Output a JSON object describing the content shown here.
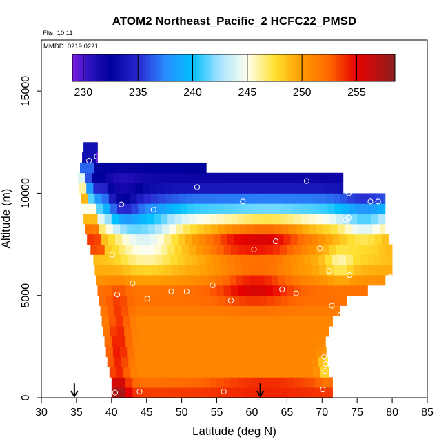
{
  "chart_data": {
    "type": "heatmap",
    "title": "ATOM2 Northeast_Pacific_2 HCFC22_PMSD",
    "flights_label": "Flts: 10,11",
    "dates_label": "MMDD: 0219,0221",
    "xlabel": "Latitude (deg N)",
    "ylabel": "Altitude (m)",
    "xlim": [
      30,
      85
    ],
    "ylim": [
      0,
      17500
    ],
    "x_ticks": [
      30,
      35,
      40,
      45,
      50,
      55,
      60,
      65,
      70,
      75,
      80,
      85
    ],
    "y_ticks": [
      0,
      5000,
      10000,
      15000
    ],
    "colorbar": {
      "min": 229,
      "max": 258.5,
      "tick_values": [
        230,
        235,
        240,
        245,
        250,
        255
      ],
      "stops": [
        {
          "value": 229.0,
          "color": "#7b1ee0"
        },
        {
          "value": 230.5,
          "color": "#2f12c0"
        },
        {
          "value": 232.5,
          "color": "#00009a"
        },
        {
          "value": 235.0,
          "color": "#2828d0"
        },
        {
          "value": 237.5,
          "color": "#2a8cff"
        },
        {
          "value": 240.0,
          "color": "#00c0ff"
        },
        {
          "value": 242.5,
          "color": "#a8e4ff"
        },
        {
          "value": 245.0,
          "color": "#ffffee"
        },
        {
          "value": 247.5,
          "color": "#ffe030"
        },
        {
          "value": 250.0,
          "color": "#ff9a00"
        },
        {
          "value": 252.5,
          "color": "#ff6600"
        },
        {
          "value": 255.0,
          "color": "#e80000"
        },
        {
          "value": 258.5,
          "color": "#8e2020"
        }
      ]
    },
    "field": {
      "y_levels": [
        0,
        500,
        1000,
        1500,
        2000,
        2500,
        3000,
        3500,
        4000,
        4500,
        5000,
        5500,
        6000,
        6500,
        7000,
        7500,
        8000,
        8500,
        9000,
        9500,
        10000,
        10500,
        11000,
        11500,
        12000
      ],
      "envelope": [
        [
          40.0,
          71.5
        ],
        [
          40.0,
          71.5
        ],
        [
          39.7,
          71.0
        ],
        [
          39.4,
          70.8
        ],
        [
          39.2,
          70.6
        ],
        [
          39.0,
          70.5
        ],
        [
          38.8,
          71.0
        ],
        [
          38.6,
          71.5
        ],
        [
          38.4,
          72.5
        ],
        [
          38.2,
          73.5
        ],
        [
          38.0,
          76.5
        ],
        [
          37.8,
          79.0
        ],
        [
          37.6,
          80.0
        ],
        [
          37.4,
          80.0
        ],
        [
          37.0,
          80.0
        ],
        [
          36.5,
          79.5
        ],
        [
          36.2,
          79.0
        ],
        [
          36.0,
          79.0
        ],
        [
          35.8,
          79.0
        ],
        [
          35.6,
          79.0
        ],
        [
          35.4,
          73.0
        ],
        [
          35.2,
          73.0
        ],
        [
          35.5,
          53.5
        ],
        [
          35.8,
          38.0
        ],
        [
          36.0,
          38.0
        ]
      ],
      "base_values": [
        253.5,
        252.0,
        251.0,
        251.0,
        251.0,
        251.0,
        251.0,
        251.0,
        251.5,
        252.0,
        252.0,
        250.5,
        249.5,
        249.0,
        249.5,
        250.0,
        248.0,
        245.0,
        241.0,
        237.0,
        234.0,
        232.0,
        232.5,
        229.5,
        229.5
      ],
      "hot_spots": [
        {
          "lat": 62.5,
          "alt": 7700,
          "dlat": 5.0,
          "dalt": 1100,
          "delta": 5.0
        },
        {
          "lat": 60.5,
          "alt": 5500,
          "dlat": 5.0,
          "dalt": 800,
          "delta": 4.0
        },
        {
          "lat": 57.0,
          "alt": 7500,
          "dlat": 4.0,
          "dalt": 900,
          "delta": 3.0
        },
        {
          "lat": 41.0,
          "alt": 2500,
          "dlat": 1.5,
          "dalt": 2500,
          "delta": 3.5
        },
        {
          "lat": 62.0,
          "alt": 600,
          "dlat": 8.0,
          "dalt": 300,
          "delta": 2.5
        },
        {
          "lat": 41.0,
          "alt": 400,
          "dlat": 1.5,
          "dalt": 600,
          "delta": 3.0
        }
      ],
      "cold_spots": [
        {
          "lat": 41.5,
          "alt": 9200,
          "dlat": 2.5,
          "dalt": 1200,
          "delta": -4.5
        },
        {
          "lat": 76.0,
          "alt": 8500,
          "dlat": 3.5,
          "dalt": 1400,
          "delta": -4.0
        },
        {
          "lat": 38.5,
          "alt": 9800,
          "dlat": 1.2,
          "dalt": 1000,
          "delta": 2.0
        },
        {
          "lat": 72.5,
          "alt": 6600,
          "dlat": 2.0,
          "dalt": 800,
          "delta": -3.0
        },
        {
          "lat": 70.5,
          "alt": 1500,
          "dlat": 1.0,
          "dalt": 600,
          "delta": -4.0
        },
        {
          "lat": 45.0,
          "alt": 8000,
          "dlat": 4.5,
          "dalt": 1500,
          "delta": -6.0
        }
      ]
    },
    "sample_points": [
      {
        "lat": 36.8,
        "alt": 11600
      },
      {
        "lat": 37.9,
        "alt": 11800
      },
      {
        "lat": 39.0,
        "alt": 11750
      },
      {
        "lat": 52.2,
        "alt": 10300
      },
      {
        "lat": 67.8,
        "alt": 10600
      },
      {
        "lat": 58.7,
        "alt": 9600
      },
      {
        "lat": 41.4,
        "alt": 9450
      },
      {
        "lat": 46.0,
        "alt": 9200
      },
      {
        "lat": 73.8,
        "alt": 10000
      },
      {
        "lat": 76.9,
        "alt": 9600
      },
      {
        "lat": 78.0,
        "alt": 9600
      },
      {
        "lat": 73.4,
        "alt": 8700
      },
      {
        "lat": 73.8,
        "alt": 8800
      },
      {
        "lat": 63.4,
        "alt": 7650
      },
      {
        "lat": 60.3,
        "alt": 7250
      },
      {
        "lat": 69.7,
        "alt": 7300
      },
      {
        "lat": 40.1,
        "alt": 7000
      },
      {
        "lat": 71.0,
        "alt": 6200
      },
      {
        "lat": 73.9,
        "alt": 6000
      },
      {
        "lat": 79.7,
        "alt": 5900
      },
      {
        "lat": 43.0,
        "alt": 5600
      },
      {
        "lat": 54.4,
        "alt": 5500
      },
      {
        "lat": 64.3,
        "alt": 5300
      },
      {
        "lat": 66.3,
        "alt": 5100
      },
      {
        "lat": 48.5,
        "alt": 5200
      },
      {
        "lat": 50.7,
        "alt": 5200
      },
      {
        "lat": 40.8,
        "alt": 5050
      },
      {
        "lat": 45.1,
        "alt": 4850
      },
      {
        "lat": 57.0,
        "alt": 4750
      },
      {
        "lat": 76.0,
        "alt": 4800
      },
      {
        "lat": 71.4,
        "alt": 4500
      },
      {
        "lat": 72.6,
        "alt": 4050
      },
      {
        "lat": 70.3,
        "alt": 2000
      },
      {
        "lat": 70.5,
        "alt": 1650
      },
      {
        "lat": 70.4,
        "alt": 1300
      },
      {
        "lat": 72.3,
        "alt": 900
      },
      {
        "lat": 40.5,
        "alt": 250
      },
      {
        "lat": 44.0,
        "alt": 300
      },
      {
        "lat": 56.0,
        "alt": 300
      },
      {
        "lat": 70.1,
        "alt": 400
      }
    ],
    "arrows": [
      {
        "lat": 34.7,
        "alt_top": 700,
        "alt_bottom": 0
      },
      {
        "lat": 61.2,
        "alt_top": 700,
        "alt_bottom": 0
      }
    ]
  }
}
